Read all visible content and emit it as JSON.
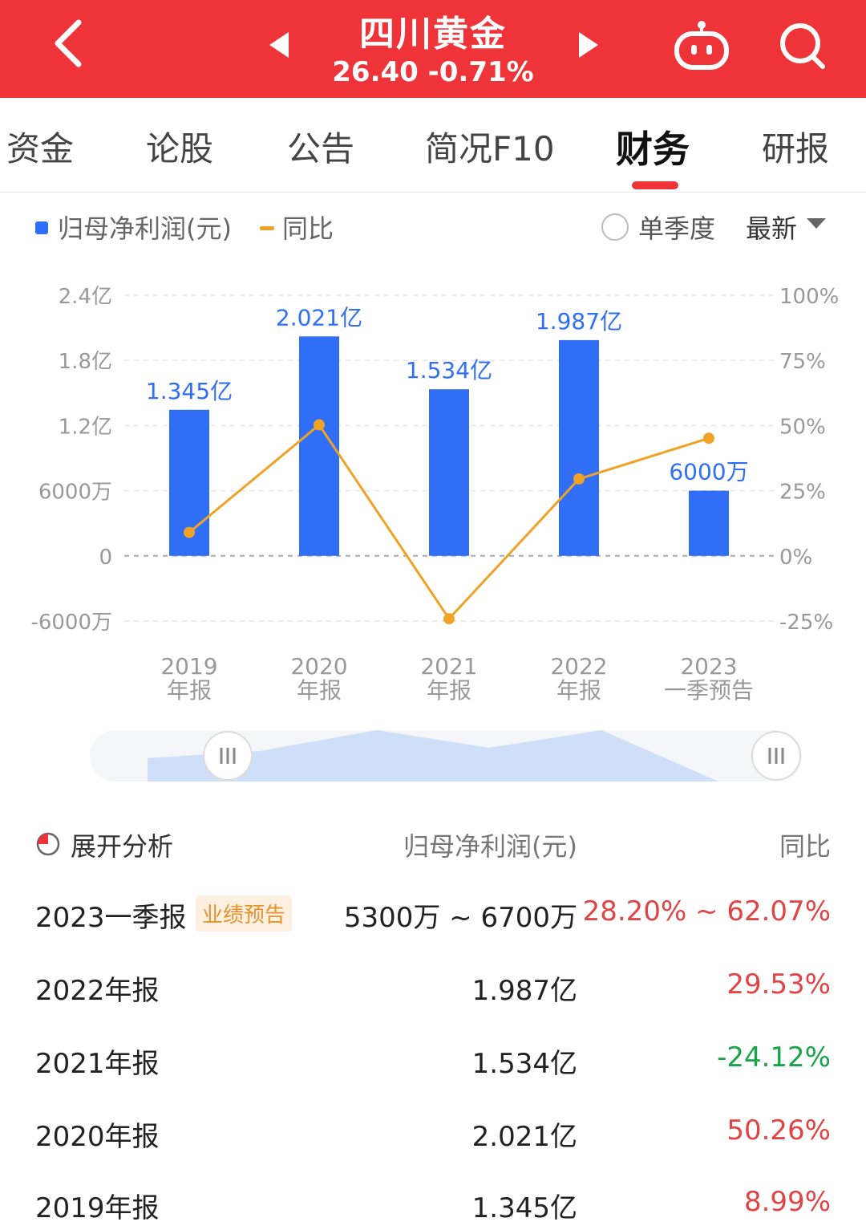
{
  "header": {
    "title": "四川黄金",
    "price": "26.40",
    "change": "-0.71%",
    "bg_color": "#ee3438",
    "back_icon": "chevron-left-icon",
    "prev_icon": "triangle-left-icon",
    "next_icon": "triangle-right-icon",
    "robot_icon": "robot-icon",
    "search_icon": "search-icon"
  },
  "tabs": [
    {
      "label": "资金",
      "active": false
    },
    {
      "label": "论股",
      "active": false
    },
    {
      "label": "公告",
      "active": false
    },
    {
      "label": "简况F10",
      "active": false
    },
    {
      "label": "财务",
      "active": true
    },
    {
      "label": "研报",
      "active": false
    }
  ],
  "legend": {
    "series1": "归母净利润(元)",
    "series2": "同比",
    "single_quarter": "单季度",
    "latest": "最新"
  },
  "chart_data": {
    "type": "bar",
    "categories": [
      "2019\n年报",
      "2020\n年报",
      "2021\n年报",
      "2022\n年报",
      "2023\n一季预告"
    ],
    "category_lines": [
      [
        "2019",
        "年报"
      ],
      [
        "2020",
        "年报"
      ],
      [
        "2021",
        "年报"
      ],
      [
        "2022",
        "年报"
      ],
      [
        "2023",
        "一季预告"
      ]
    ],
    "series": [
      {
        "name": "归母净利润(元)",
        "type": "bar",
        "axis": "left",
        "values": [
          134500000,
          202100000,
          153400000,
          198700000,
          60000000
        ],
        "labels": [
          "1.345亿",
          "2.021亿",
          "1.534亿",
          "1.987亿",
          "6000万"
        ],
        "color": "#2f6ef5"
      },
      {
        "name": "同比",
        "type": "line",
        "axis": "right",
        "values": [
          8.99,
          50.26,
          -24.12,
          29.53,
          45.13
        ],
        "color": "#f0a225"
      }
    ],
    "y_left": {
      "ticks": [
        240000000,
        180000000,
        120000000,
        60000000,
        0,
        -60000000
      ],
      "tick_labels": [
        "2.4亿",
        "1.8亿",
        "1.2亿",
        "6000万",
        "0",
        "-6000万"
      ],
      "range": [
        -60000000,
        240000000
      ]
    },
    "y_right": {
      "ticks": [
        100,
        75,
        50,
        25,
        0,
        -25
      ],
      "tick_labels": [
        "100%",
        "75%",
        "50%",
        "25%",
        "0%",
        "-25%"
      ],
      "range": [
        -25,
        100
      ]
    },
    "grid": true
  },
  "slider": {
    "left_handle_icon": "grip-icon",
    "right_handle_icon": "grip-icon"
  },
  "table": {
    "expand_label": "展开分析",
    "col_value": "归母净利润(元)",
    "col_yoy": "同比",
    "rows": [
      {
        "period": "2023一季报",
        "badge": "业绩预告",
        "value": "5300万 ~ 6700万",
        "yoy": "28.20% ~ 62.07%",
        "yoy_color": "#e04444"
      },
      {
        "period": "2022年报",
        "badge": "",
        "value": "1.987亿",
        "yoy": "29.53%",
        "yoy_color": "#e04444"
      },
      {
        "period": "2021年报",
        "badge": "",
        "value": "1.534亿",
        "yoy": "-24.12%",
        "yoy_color": "#1aa34a"
      },
      {
        "period": "2020年报",
        "badge": "",
        "value": "2.021亿",
        "yoy": "50.26%",
        "yoy_color": "#e04444"
      },
      {
        "period": "2019年报",
        "badge": "",
        "value": "1.345亿",
        "yoy": "8.99%",
        "yoy_color": "#e04444"
      }
    ]
  }
}
